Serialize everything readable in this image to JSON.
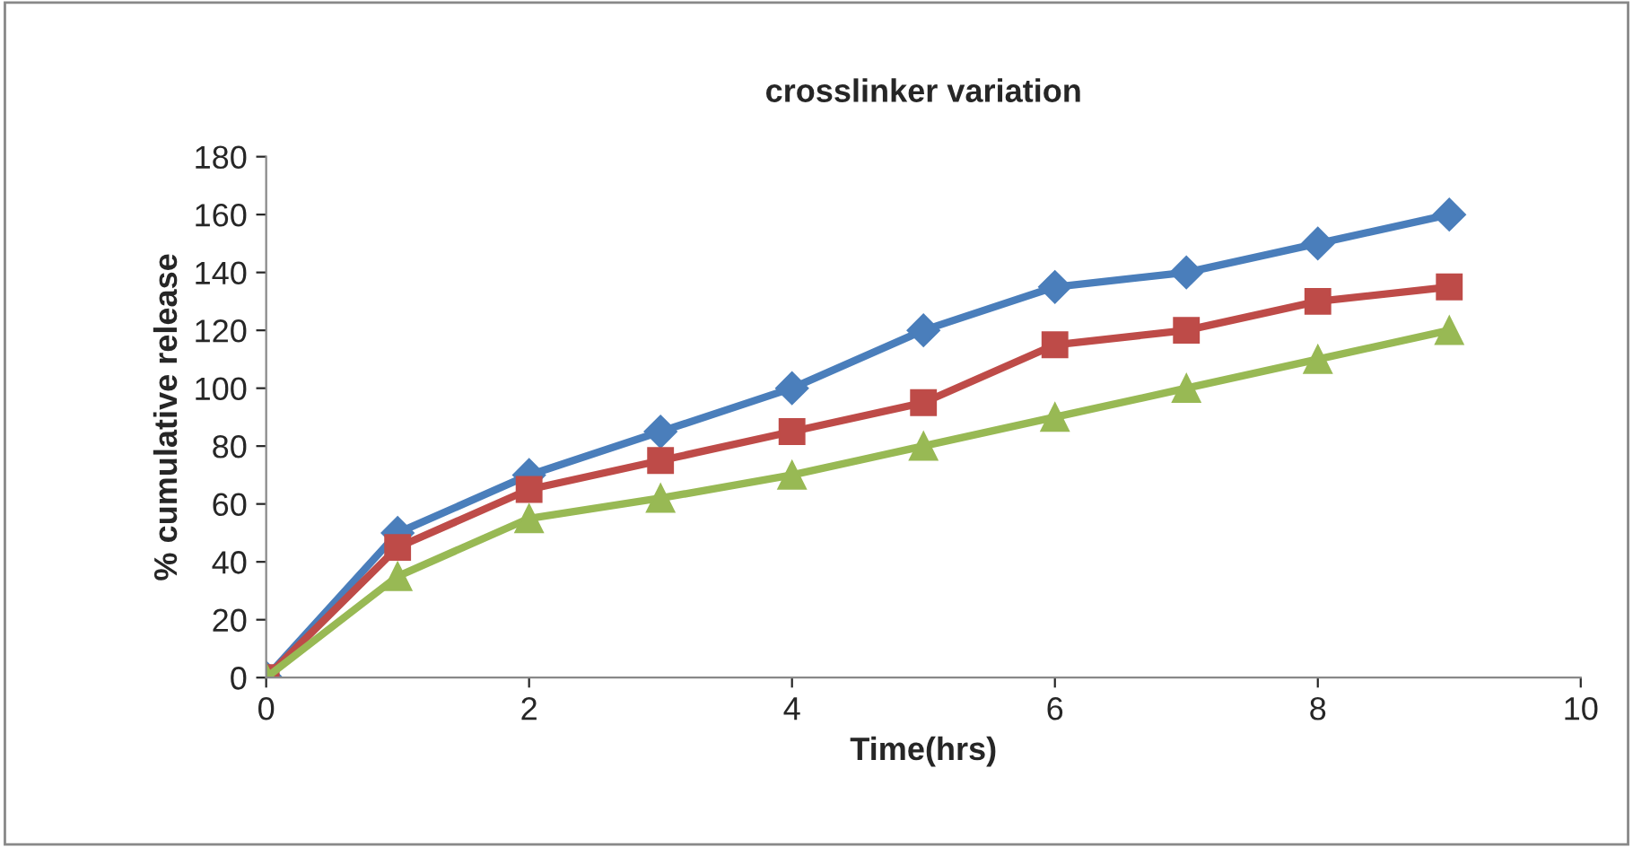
{
  "chart_data": {
    "type": "line",
    "title": "crosslinker variation",
    "xlabel": "Time(hrs)",
    "ylabel": "% cumulative release",
    "x": [
      0,
      1,
      2,
      3,
      4,
      5,
      6,
      7,
      8,
      9
    ],
    "xlim": [
      0,
      10
    ],
    "xticks": [
      0,
      2,
      4,
      6,
      8,
      10
    ],
    "ylim": [
      0,
      180
    ],
    "yticks": [
      0,
      20,
      40,
      60,
      80,
      100,
      120,
      140,
      160,
      180
    ],
    "grid": false,
    "legend": false,
    "line_style": "solid",
    "series": [
      {
        "color": "#4a7ebb",
        "marker": "diamond",
        "values": [
          0,
          50,
          70,
          85,
          100,
          120,
          135,
          140,
          150,
          160
        ]
      },
      {
        "color": "#be4b48",
        "marker": "square",
        "values": [
          0,
          45,
          65,
          75,
          85,
          95,
          115,
          120,
          130,
          135
        ]
      },
      {
        "color": "#98b954",
        "marker": "triangle",
        "values": [
          0,
          35,
          55,
          62,
          70,
          80,
          90,
          100,
          110,
          120
        ]
      }
    ]
  }
}
